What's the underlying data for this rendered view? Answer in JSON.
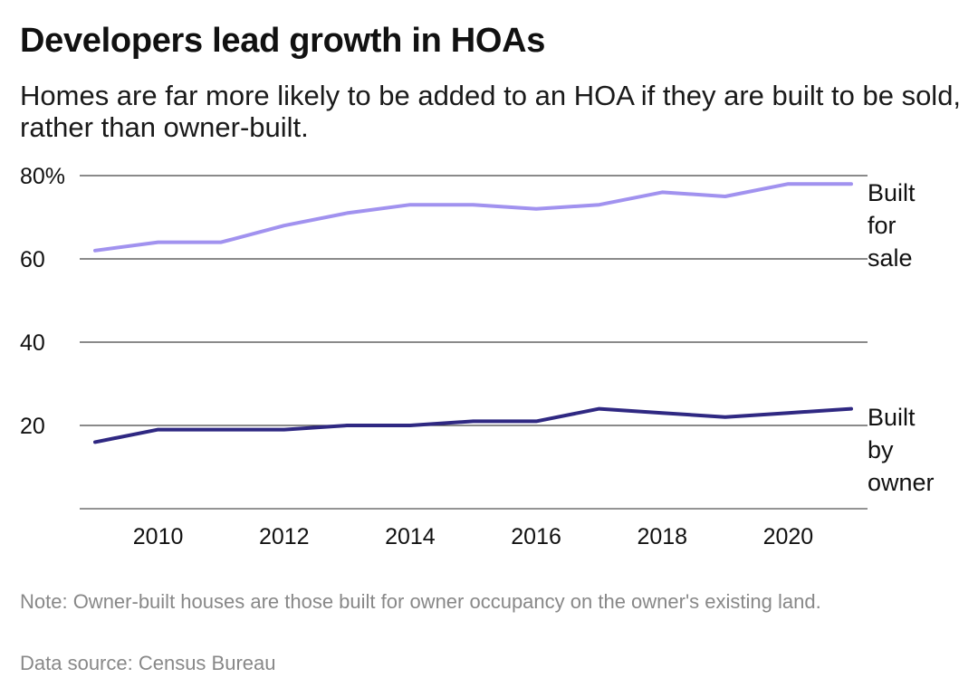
{
  "title": "Developers lead growth in HOAs",
  "subtitle": "Homes are far more likely to be added to an HOA if they are built to be sold, rather than owner-built.",
  "note": "Note: Owner-built houses are those built for owner occupancy on the owner's existing land.",
  "source": "Data source: Census Bureau",
  "colors": {
    "built_for_sale": "#a192ef",
    "built_by_owner": "#2f2882",
    "gridline": "#444444"
  },
  "chart_data": {
    "type": "line",
    "title": "Developers lead growth in HOAs",
    "xlabel": "",
    "ylabel": "",
    "x": [
      2009,
      2010,
      2011,
      2012,
      2013,
      2014,
      2015,
      2016,
      2017,
      2018,
      2019,
      2020,
      2021
    ],
    "xlim": [
      2009,
      2021
    ],
    "ylim": [
      0,
      80
    ],
    "x_ticks": [
      2010,
      2012,
      2014,
      2016,
      2018,
      2020
    ],
    "x_tick_labels": [
      "2010",
      "2012",
      "2014",
      "2016",
      "2018",
      "2020"
    ],
    "y_ticks": [
      20,
      40,
      60,
      80
    ],
    "y_tick_labels": [
      "20",
      "40",
      "60",
      "80%"
    ],
    "grid": true,
    "series": [
      {
        "name": "Built for sale",
        "label_lines": [
          "Built",
          "for",
          "sale"
        ],
        "values": [
          62,
          64,
          64,
          68,
          71,
          73,
          73,
          72,
          73,
          76,
          75,
          78,
          78
        ]
      },
      {
        "name": "Built by owner",
        "label_lines": [
          "Built",
          "by",
          "owner"
        ],
        "values": [
          16,
          19,
          19,
          19,
          20,
          20,
          21,
          21,
          24,
          23,
          22,
          23,
          24
        ]
      }
    ]
  }
}
